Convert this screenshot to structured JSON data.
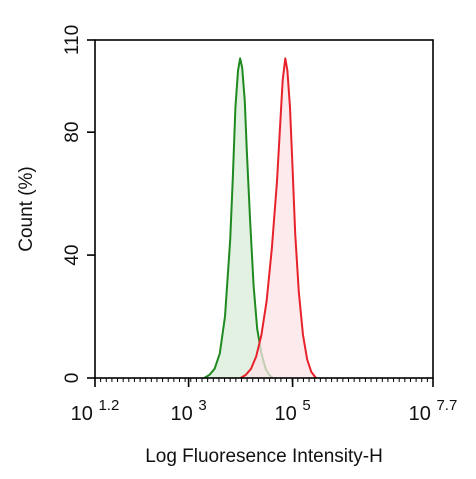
{
  "chart_data": {
    "type": "area",
    "title": "",
    "xlabel": "Log Fluoresence Intensity-H",
    "ylabel": "Count  (%)",
    "x_scale": "log",
    "xlim_log10": [
      1.2,
      7.7
    ],
    "ylim": [
      0,
      110
    ],
    "y_ticks": [
      "0",
      "40",
      "80",
      "110"
    ],
    "y_tick_values": [
      0,
      40,
      80,
      110
    ],
    "x_ticks": [
      {
        "base": "10",
        "exp": "1.2",
        "log10": 1.2
      },
      {
        "base": "10",
        "exp": "3",
        "log10": 3
      },
      {
        "base": "10",
        "exp": "5",
        "log10": 5
      },
      {
        "base": "10",
        "exp": "7.7",
        "log10": 7.7
      }
    ],
    "grid": false,
    "legend": "none",
    "series": [
      {
        "color": "#1f8a1f",
        "fill": "#d8ecd8",
        "points": [
          [
            3.3,
            0
          ],
          [
            3.4,
            1
          ],
          [
            3.5,
            3
          ],
          [
            3.6,
            8
          ],
          [
            3.7,
            20
          ],
          [
            3.8,
            45
          ],
          [
            3.85,
            65
          ],
          [
            3.9,
            88
          ],
          [
            3.95,
            100
          ],
          [
            3.99,
            104
          ],
          [
            4.03,
            101
          ],
          [
            4.08,
            90
          ],
          [
            4.12,
            74
          ],
          [
            4.18,
            52
          ],
          [
            4.25,
            30
          ],
          [
            4.32,
            16
          ],
          [
            4.4,
            8
          ],
          [
            4.48,
            3
          ],
          [
            4.55,
            1
          ],
          [
            4.62,
            0
          ]
        ]
      },
      {
        "color": "#e8222b",
        "fill": "#fbe3e5",
        "points": [
          [
            4.0,
            0
          ],
          [
            4.1,
            1
          ],
          [
            4.2,
            3
          ],
          [
            4.3,
            7
          ],
          [
            4.4,
            14
          ],
          [
            4.5,
            25
          ],
          [
            4.6,
            42
          ],
          [
            4.7,
            64
          ],
          [
            4.76,
            82
          ],
          [
            4.81,
            97
          ],
          [
            4.86,
            104
          ],
          [
            4.9,
            100
          ],
          [
            4.95,
            88
          ],
          [
            5.0,
            68
          ],
          [
            5.05,
            47
          ],
          [
            5.12,
            28
          ],
          [
            5.2,
            14
          ],
          [
            5.28,
            6
          ],
          [
            5.36,
            2
          ],
          [
            5.45,
            0
          ]
        ]
      }
    ]
  }
}
